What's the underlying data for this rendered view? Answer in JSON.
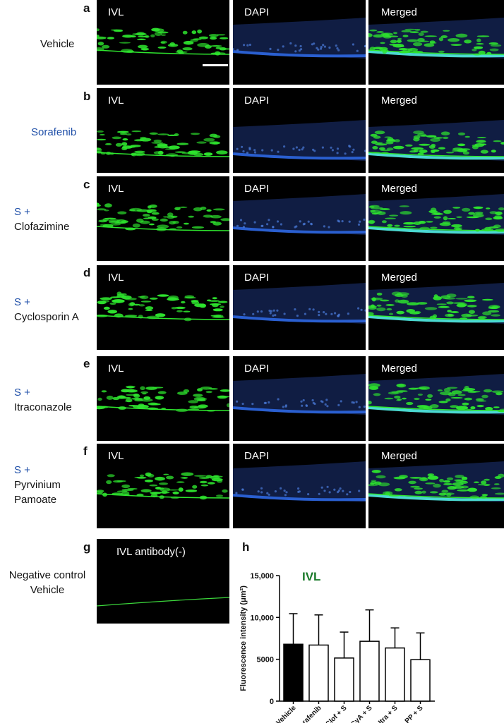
{
  "rows": [
    {
      "letter": "a",
      "label_line1": "Vehicle",
      "label_line2": "",
      "label_line3": ""
    },
    {
      "letter": "b",
      "label_line1": "Sorafenib",
      "label_line2": "",
      "label_line3": ""
    },
    {
      "letter": "c",
      "label_line1": "S +",
      "label_line2": "Clofazimine",
      "label_line3": ""
    },
    {
      "letter": "d",
      "label_line1": "S +",
      "label_line2": "Cyclosporin A",
      "label_line3": ""
    },
    {
      "letter": "e",
      "label_line1": "S +",
      "label_line2": "Itraconazole",
      "label_line3": ""
    },
    {
      "letter": "f",
      "label_line1": "S +",
      "label_line2": "Pyrvinium",
      "label_line3": "Pamoate"
    }
  ],
  "tile_labels": {
    "ivl": "IVL",
    "dapi": "DAPI",
    "merged": "Merged"
  },
  "negative": {
    "letter": "g",
    "tile_label": "IVL antibody(-)",
    "label_line1": "Negative control",
    "label_line2": "Vehicle"
  },
  "colors": {
    "ivl": "#2ee52e",
    "dapi": "#2a5fd0",
    "merged_cyan": "#4ad8d0",
    "blue_text": "#1f4fa8",
    "ivl_title": "#1a7a2a"
  },
  "chart_data": {
    "type": "bar",
    "panel_letter": "h",
    "inset_title": "IVL",
    "ylabel": "Fluorescence intensity (μm²)",
    "categories": [
      "Vehicle",
      "Sorafenib",
      "Clof + S",
      "CyA + S",
      "Itra + S",
      "PP + S"
    ],
    "values": [
      6800,
      6700,
      5150,
      7150,
      6350,
      4950
    ],
    "errors": [
      3650,
      3600,
      3100,
      3750,
      2400,
      3200
    ],
    "fills": [
      "#000000",
      "#ffffff",
      "#ffffff",
      "#ffffff",
      "#ffffff",
      "#ffffff"
    ],
    "ylim": [
      0,
      15000
    ],
    "yticks": [
      "0",
      "5000",
      "10,000",
      "15,000"
    ]
  }
}
